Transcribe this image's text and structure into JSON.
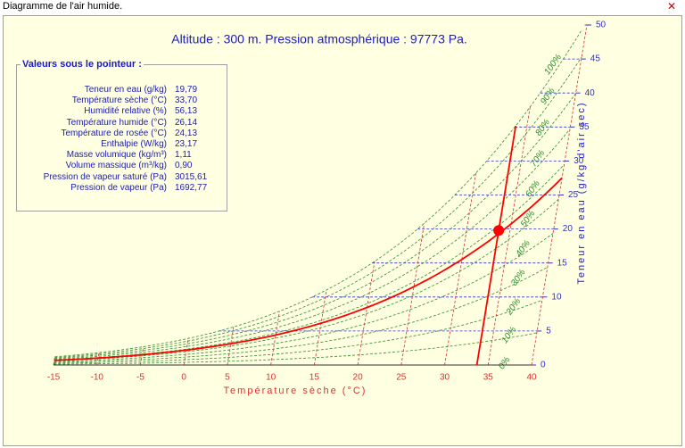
{
  "window": {
    "title": "Diagramme de l'air humide."
  },
  "chart_data": {
    "type": "psychrometric",
    "title": "Altitude : 300 m. Pression atmosphérique : 97773 Pa.",
    "pressure": 97773,
    "x_label": "Température sèche (°C)",
    "y_label": "Teneur en eau (g/kg d'air sec)",
    "xlim": [
      -15,
      40
    ],
    "xticks": [
      -15,
      -10,
      -5,
      0,
      5,
      10,
      15,
      20,
      25,
      30,
      35,
      40
    ],
    "ylim": [
      0,
      50
    ],
    "yticks": [
      0,
      5,
      10,
      15,
      20,
      25,
      30,
      35,
      40,
      45,
      50
    ],
    "rh_lines": [
      {
        "value": 0,
        "label": "0%"
      },
      {
        "value": 10,
        "label": "10%"
      },
      {
        "value": 20,
        "label": "20%"
      },
      {
        "value": 30,
        "label": "30%"
      },
      {
        "value": 40,
        "label": "40%"
      },
      {
        "value": 50,
        "label": "50%"
      },
      {
        "value": 60,
        "label": "60%"
      },
      {
        "value": 70,
        "label": "70%"
      },
      {
        "value": 80,
        "label": "80%"
      },
      {
        "value": 90,
        "label": "90%"
      },
      {
        "value": 100,
        "label": "100%"
      }
    ],
    "rh_color": "#2e8b2e",
    "pointer": {
      "x": 33.7,
      "y": 19.79,
      "rh": 56.13,
      "color": "#ff0000"
    },
    "panel": {
      "title": "Valeurs sous le pointeur :",
      "rows": [
        [
          "Teneur en eau (g/kg)",
          "19,79"
        ],
        [
          "Température sèche (°C)",
          "33,70"
        ],
        [
          "Humidité relative (%)",
          "56,13"
        ],
        [
          "Température humide (°C)",
          "26,14"
        ],
        [
          "Température de rosée (°C)",
          "24,13"
        ],
        [
          "Enthalpie (W/kg)",
          "23,17"
        ],
        [
          "Masse volumique (kg/m³)",
          "1,11"
        ],
        [
          "Volume massique (m³/kg)",
          "0,90"
        ],
        [
          "Pression de vapeur saturé (Pa)",
          "3015,61"
        ],
        [
          "Pression de vapeur (Pa)",
          "1692,77"
        ]
      ]
    }
  }
}
